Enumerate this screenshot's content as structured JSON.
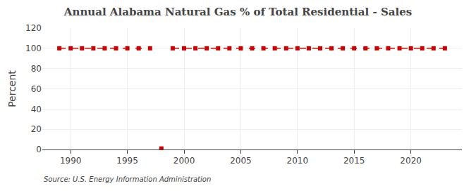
{
  "chart_data": {
    "type": "line",
    "title": "Annual Alabama Natural Gas % of Total Residential - Sales",
    "ylabel": "Percent",
    "annotations": [
      "Source: U.S. Energy Information Administration"
    ],
    "x": [
      1989,
      1990,
      1991,
      1992,
      1993,
      1994,
      1995,
      1996,
      1997,
      1998,
      1999,
      2000,
      2001,
      2002,
      2003,
      2004,
      2005,
      2006,
      2007,
      2008,
      2009,
      2010,
      2011,
      2012,
      2013,
      2014,
      2015,
      2016,
      2017,
      2018,
      2019,
      2020,
      2021,
      2022,
      2023
    ],
    "series": [
      {
        "type": "line",
        "color": "#cc0000",
        "marker": "square",
        "line_style": "dashed",
        "values": [
          100.0,
          100.0,
          100.0,
          100.0,
          100.0,
          100.0,
          100.0,
          100.0,
          100.0,
          null,
          100.0,
          100.0,
          100.0,
          100.0,
          100.0,
          100.0,
          100.0,
          100.0,
          100.0,
          100.0,
          100.0,
          100.0,
          100.0,
          100.0,
          100.0,
          100.0,
          100.0,
          100.0,
          100.0,
          100.0,
          100.0,
          100.0,
          100.0,
          100.0,
          100.0
        ]
      },
      {
        "type": "scatter",
        "color": "#cc0000",
        "marker": "square",
        "values": [
          null,
          null,
          null,
          null,
          null,
          null,
          null,
          null,
          null,
          1.0,
          null,
          null,
          null,
          null,
          null,
          null,
          null,
          null,
          null,
          null,
          null,
          null,
          null,
          null,
          null,
          null,
          null,
          null,
          null,
          null,
          null,
          null,
          null,
          null,
          null
        ]
      }
    ],
    "xlim": [
      1987.5,
      2024.5
    ],
    "xticks": [
      1990,
      1995,
      2000,
      2005,
      2010,
      2015,
      2020
    ],
    "ylim": [
      0,
      120
    ],
    "yticks": [
      0,
      20,
      40,
      60,
      80,
      100,
      120
    ],
    "grid": true
  }
}
